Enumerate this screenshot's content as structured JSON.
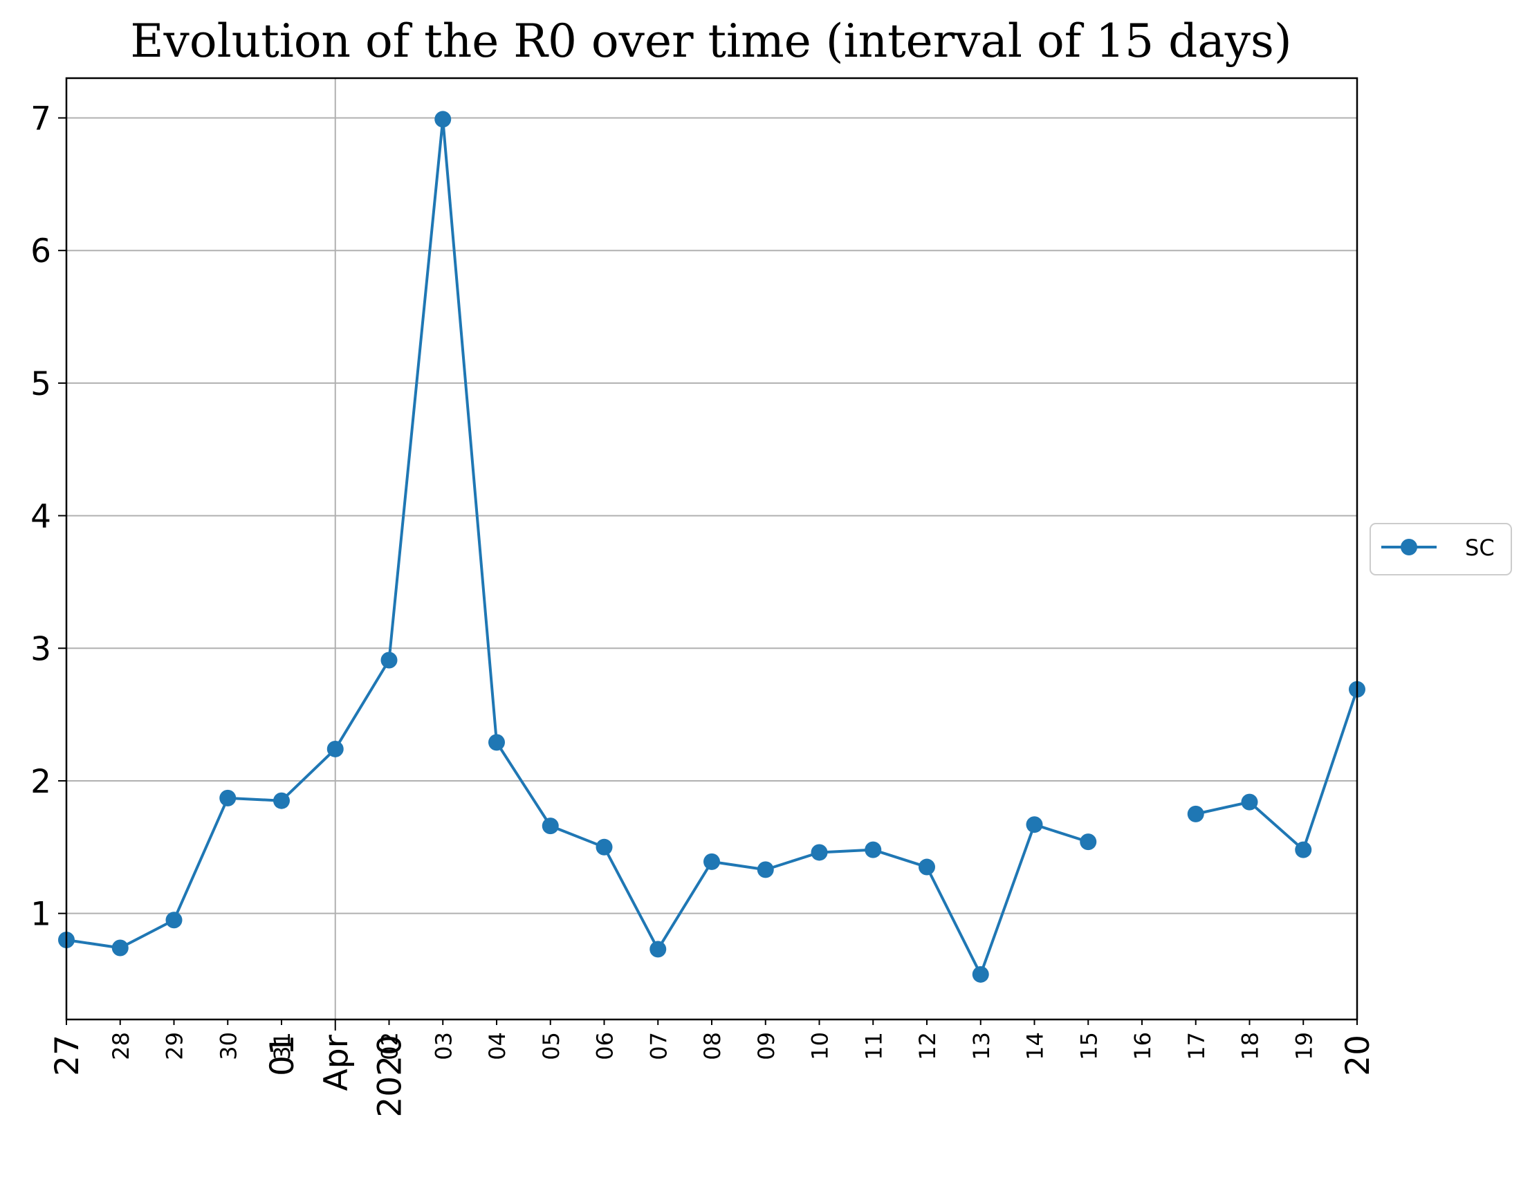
{
  "chart_data": {
    "type": "line",
    "title": "Evolution of the R0 over time (interval of 15 days)",
    "xlabel": "",
    "ylabel": "",
    "ylim": [
      0.2,
      7.3
    ],
    "y_ticks": [
      1,
      2,
      3,
      4,
      5,
      6,
      7
    ],
    "x_range_days": [
      0,
      24
    ],
    "grid": true,
    "legend_placement": "center-right outside",
    "series_color": "#1f77b4",
    "x_ticks": [
      {
        "day": 0,
        "label": "27",
        "style": "big"
      },
      {
        "day": 1,
        "label": "28",
        "style": "small"
      },
      {
        "day": 2,
        "label": "29",
        "style": "small"
      },
      {
        "day": 3,
        "label": "30",
        "style": "small"
      },
      {
        "day": 4,
        "label": "31",
        "style": "small"
      },
      {
        "day": 4,
        "label": "01",
        "style": "big"
      },
      {
        "day": 5,
        "label": "Apr",
        "style": "big"
      },
      {
        "day": 6,
        "label": "2020",
        "style": "big"
      },
      {
        "day": 6,
        "label": "02",
        "style": "small"
      },
      {
        "day": 7,
        "label": "03",
        "style": "small"
      },
      {
        "day": 8,
        "label": "04",
        "style": "small"
      },
      {
        "day": 9,
        "label": "05",
        "style": "small"
      },
      {
        "day": 10,
        "label": "06",
        "style": "small"
      },
      {
        "day": 11,
        "label": "07",
        "style": "small"
      },
      {
        "day": 12,
        "label": "08",
        "style": "small"
      },
      {
        "day": 13,
        "label": "09",
        "style": "small"
      },
      {
        "day": 14,
        "label": "10",
        "style": "small"
      },
      {
        "day": 15,
        "label": "11",
        "style": "small"
      },
      {
        "day": 16,
        "label": "12",
        "style": "small"
      },
      {
        "day": 17,
        "label": "13",
        "style": "small"
      },
      {
        "day": 18,
        "label": "14",
        "style": "small"
      },
      {
        "day": 19,
        "label": "15",
        "style": "small"
      },
      {
        "day": 20,
        "label": "16",
        "style": "small"
      },
      {
        "day": 21,
        "label": "17",
        "style": "small"
      },
      {
        "day": 22,
        "label": "18",
        "style": "small"
      },
      {
        "day": 23,
        "label": "19",
        "style": "small"
      },
      {
        "day": 24,
        "label": "20",
        "style": "big"
      }
    ],
    "series": [
      {
        "name": "SC",
        "x": [
          "27",
          "28",
          "29",
          "30",
          "31",
          "Apr 01",
          "02",
          "03",
          "04",
          "05",
          "06",
          "07",
          "08",
          "09",
          "10",
          "11",
          "12",
          "13",
          "14",
          "15",
          "16",
          "17",
          "18",
          "19",
          "20"
        ],
        "values": [
          0.8,
          0.74,
          0.95,
          1.87,
          1.85,
          2.24,
          2.91,
          6.99,
          2.29,
          1.66,
          1.5,
          0.73,
          1.39,
          1.33,
          1.46,
          1.48,
          1.35,
          0.54,
          1.67,
          1.54,
          null,
          1.75,
          1.84,
          1.48,
          2.69
        ]
      }
    ]
  }
}
